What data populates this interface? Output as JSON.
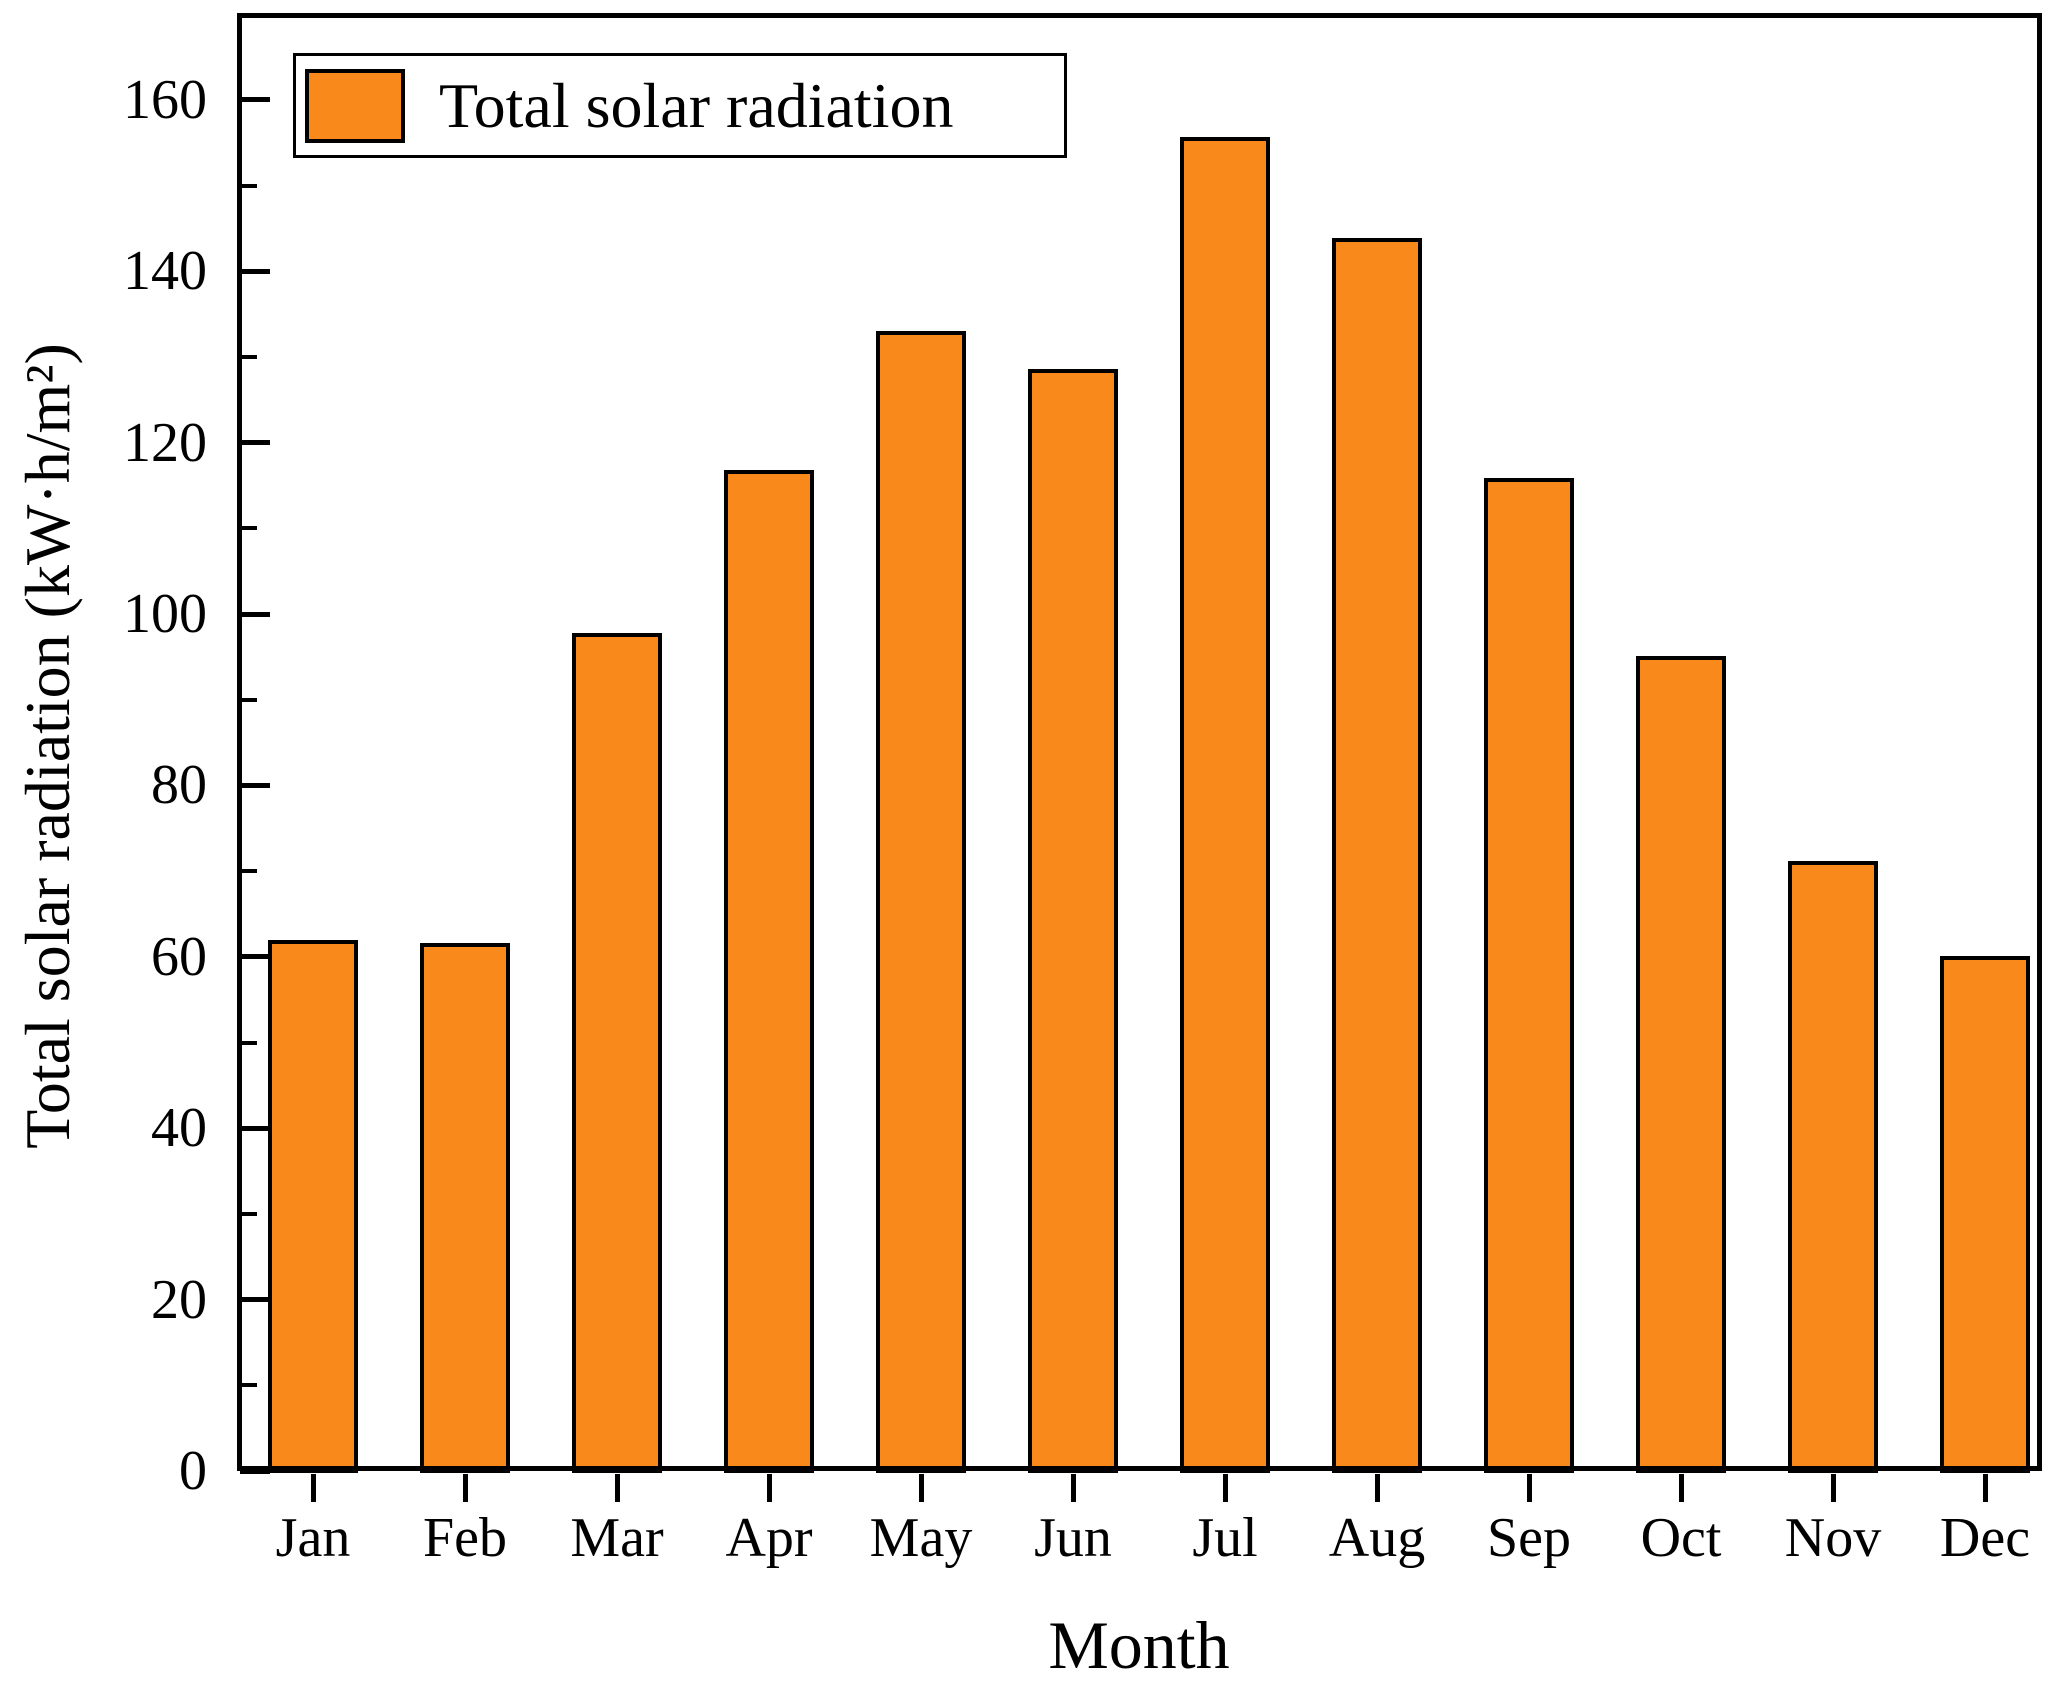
{
  "chart_data": {
    "type": "bar",
    "title": "",
    "categories": [
      "Jan",
      "Feb",
      "Mar",
      "Apr",
      "May",
      "Jun",
      "Jul",
      "Aug",
      "Sep",
      "Oct",
      "Nov",
      "Dec"
    ],
    "series": [
      {
        "name": "Total solar radiation",
        "values": [
          62.0,
          61.6,
          97.8,
          116.8,
          133.0,
          128.6,
          155.7,
          143.9,
          115.9,
          95.1,
          71.2,
          60.1
        ]
      }
    ],
    "xlabel": "Month",
    "ylabel": "Total solar radiation (kW·h/m²)",
    "ylim": [
      0,
      170
    ],
    "yticks_major": [
      0,
      20,
      40,
      60,
      80,
      100,
      120,
      140,
      160
    ],
    "yticks_minor": [
      10,
      30,
      50,
      70,
      90,
      110,
      130,
      150
    ],
    "grid": false,
    "legend_position": "top-left",
    "bar_fill_color": "#FA891B",
    "bar_border_color": "#000000",
    "frame_color": "#000000"
  },
  "legend": {
    "items": [
      {
        "label": "Total solar radiation",
        "swatch_color": "#FA891B"
      }
    ]
  }
}
